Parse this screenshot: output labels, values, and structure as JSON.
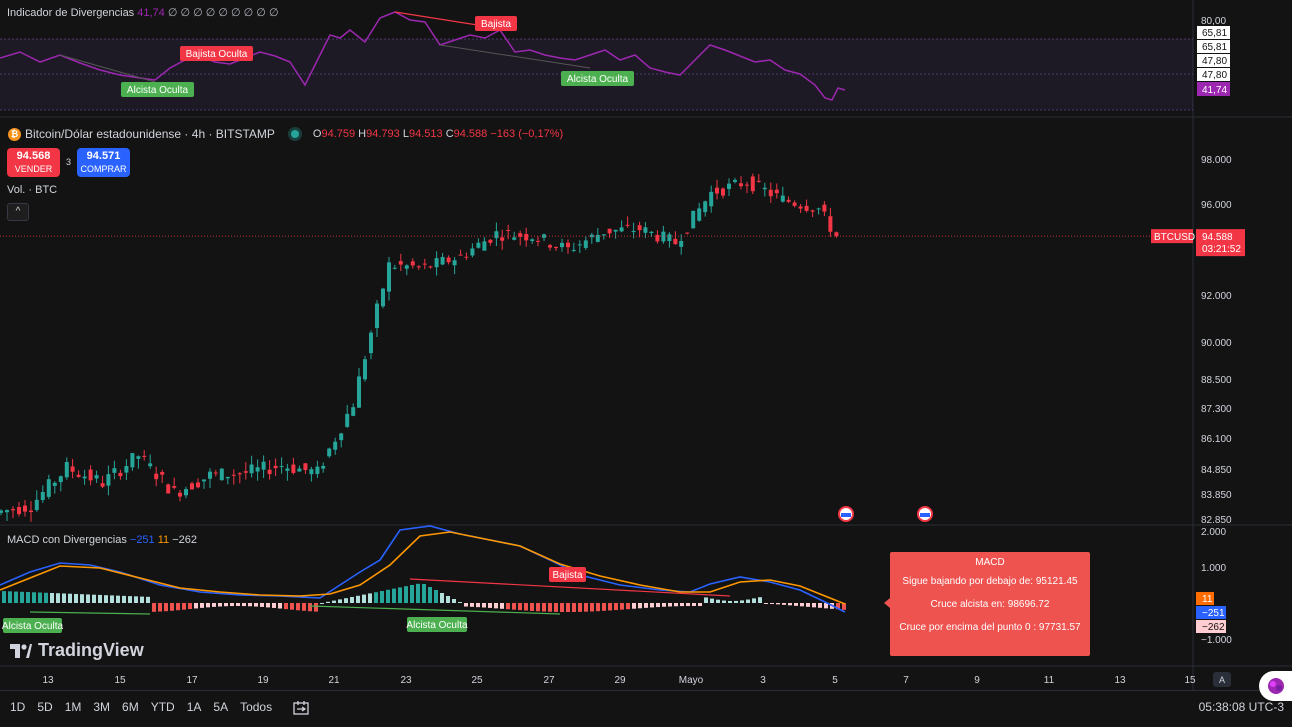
{
  "indicator": {
    "name": "Indicador de Divergencias",
    "value": "41,74",
    "extra": "∅ ∅ ∅ ∅ ∅ ∅ ∅ ∅ ∅",
    "scale": [
      "80,00",
      "65,81",
      "65,81",
      "47,80",
      "47,80"
    ],
    "current": "41,74",
    "labels": {
      "bearish": "Bajista",
      "bearish_hidden": "Bajista Oculta",
      "bullish_hidden_1": "Alcista Oculta",
      "bullish_hidden_2": "Alcista Oculta"
    }
  },
  "symbol": {
    "name": "Bitcoin/Dólar estadounidense · 4h · BITSTAMP",
    "o_label": "O",
    "o": "94.759",
    "h_label": "H",
    "h": "94.793",
    "l_label": "L",
    "l": "94.513",
    "c_label": "C",
    "c": "94.588",
    "change": "−163 (−0,17%)"
  },
  "trade": {
    "sell_price": "94.568",
    "sell_label": "VENDER",
    "spread": "3",
    "buy_price": "94.571",
    "buy_label": "COMPRAR"
  },
  "volume_label": "Vol. · BTC",
  "collapse_icon": "^",
  "price_axis": [
    "98.000",
    "96.000",
    "92.000",
    "90.000",
    "88.500",
    "87.300",
    "86.100",
    "84.850",
    "83.850",
    "82.850"
  ],
  "last_price": {
    "ticker": "BTCUSD",
    "price": "94.588",
    "countdown": "03:21:52",
    "color": "#f23645"
  },
  "macd": {
    "name": "MACD con Divergencias",
    "v1": "−251",
    "v2": "11",
    "v3": "−262",
    "axis": [
      "2.000",
      "1.000",
      "−1.000"
    ],
    "badges": [
      "11",
      "−251",
      "−262"
    ],
    "labels": {
      "bearish": "Bajista",
      "bullish_1": "Alcista Oculta",
      "bullish_2": "Alcista Oculta"
    },
    "box": {
      "title": "MACD",
      "line1": "Sigue bajando por debajo de: 95121.45",
      "line2": "Cruce alcista en: 98696.72",
      "line3": "Cruce por encima del punto 0 : 97731.57"
    }
  },
  "logo": "TradingView",
  "x_axis": [
    "13",
    "15",
    "17",
    "19",
    "21",
    "23",
    "25",
    "27",
    "29",
    "Mayo",
    "3",
    "5",
    "7",
    "9",
    "11",
    "13",
    "15"
  ],
  "timeframes": [
    "1D",
    "5D",
    "1M",
    "3M",
    "6M",
    "YTD",
    "1A",
    "5A",
    "Todos"
  ],
  "clock": "05:38:08 UTC-3",
  "colors": {
    "up": "#26a69a",
    "down": "#f23645",
    "rsi": "#9c27b0",
    "macd": "#2962ff",
    "signal": "#ff9800"
  },
  "chart_data": {
    "type": "candlestick",
    "title": "Bitcoin/Dólar estadounidense · 4h · BITSTAMP",
    "x_ticks": [
      "13",
      "15",
      "17",
      "19",
      "21",
      "23",
      "25",
      "27",
      "29",
      "Mayo",
      "3",
      "5"
    ],
    "y_ticks": [
      82850,
      83850,
      84850,
      86100,
      87300,
      88500,
      90000,
      92000,
      96000,
      98000
    ],
    "last_close": 94588,
    "close_path_by_day": [
      {
        "x": "12",
        "close": 83400
      },
      {
        "x": "13",
        "close": 84900
      },
      {
        "x": "14",
        "close": 84300
      },
      {
        "x": "15",
        "close": 85400
      },
      {
        "x": "16",
        "close": 83900
      },
      {
        "x": "17",
        "close": 84600
      },
      {
        "x": "18",
        "close": 84700
      },
      {
        "x": "19",
        "close": 85000
      },
      {
        "x": "20",
        "close": 84700
      },
      {
        "x": "21",
        "close": 87500
      },
      {
        "x": "22",
        "close": 93300
      },
      {
        "x": "23",
        "close": 93200
      },
      {
        "x": "24",
        "close": 93700
      },
      {
        "x": "25",
        "close": 94700
      },
      {
        "x": "26",
        "close": 94600
      },
      {
        "x": "27",
        "close": 94000
      },
      {
        "x": "28",
        "close": 94800
      },
      {
        "x": "29",
        "close": 94900
      },
      {
        "x": "30",
        "close": 94300
      },
      {
        "x": "Mayo",
        "close": 96500
      },
      {
        "x": "2",
        "close": 97000
      },
      {
        "x": "3",
        "close": 96200
      },
      {
        "x": "4",
        "close": 95800
      },
      {
        "x": "5",
        "close": 94588
      }
    ]
  }
}
